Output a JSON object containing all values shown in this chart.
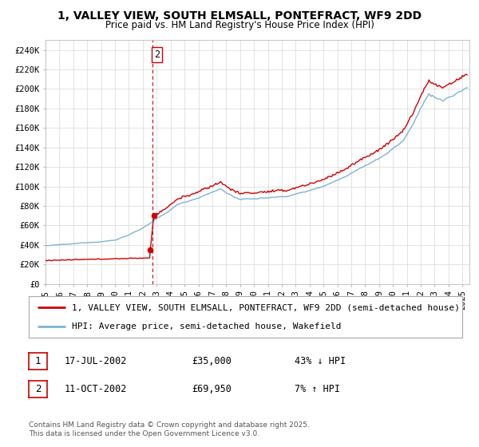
{
  "title": "1, VALLEY VIEW, SOUTH ELMSALL, PONTEFRACT, WF9 2DD",
  "subtitle": "Price paid vs. HM Land Registry's House Price Index (HPI)",
  "ylabel_ticks": [
    "£0",
    "£20K",
    "£40K",
    "£60K",
    "£80K",
    "£100K",
    "£120K",
    "£140K",
    "£160K",
    "£180K",
    "£200K",
    "£220K",
    "£240K"
  ],
  "ylim": [
    0,
    250000
  ],
  "ytick_values": [
    0,
    20000,
    40000,
    60000,
    80000,
    100000,
    120000,
    140000,
    160000,
    180000,
    200000,
    220000,
    240000
  ],
  "sale1_date": 2002.54,
  "sale1_price": 35000,
  "sale1_label": "1",
  "sale2_date": 2002.79,
  "sale2_price": 69950,
  "sale2_label": "2",
  "vline_x": 2002.67,
  "red_line_color": "#cc0000",
  "blue_line_color": "#7fb3d3",
  "marker_color": "#cc0000",
  "legend_red": "1, VALLEY VIEW, SOUTH ELMSALL, PONTEFRACT, WF9 2DD (semi-detached house)",
  "legend_blue": "HPI: Average price, semi-detached house, Wakefield",
  "table_row1": [
    "1",
    "17-JUL-2002",
    "£35,000",
    "43% ↓ HPI"
  ],
  "table_row2": [
    "2",
    "11-OCT-2002",
    "£69,950",
    "7% ↑ HPI"
  ],
  "footer": "Contains HM Land Registry data © Crown copyright and database right 2025.\nThis data is licensed under the Open Government Licence v3.0.",
  "background_color": "#ffffff",
  "grid_color": "#d8d8d8",
  "title_fontsize": 10,
  "subtitle_fontsize": 8.5,
  "tick_fontsize": 7.5,
  "legend_fontsize": 8,
  "table_fontsize": 8.5,
  "footer_fontsize": 6.5
}
